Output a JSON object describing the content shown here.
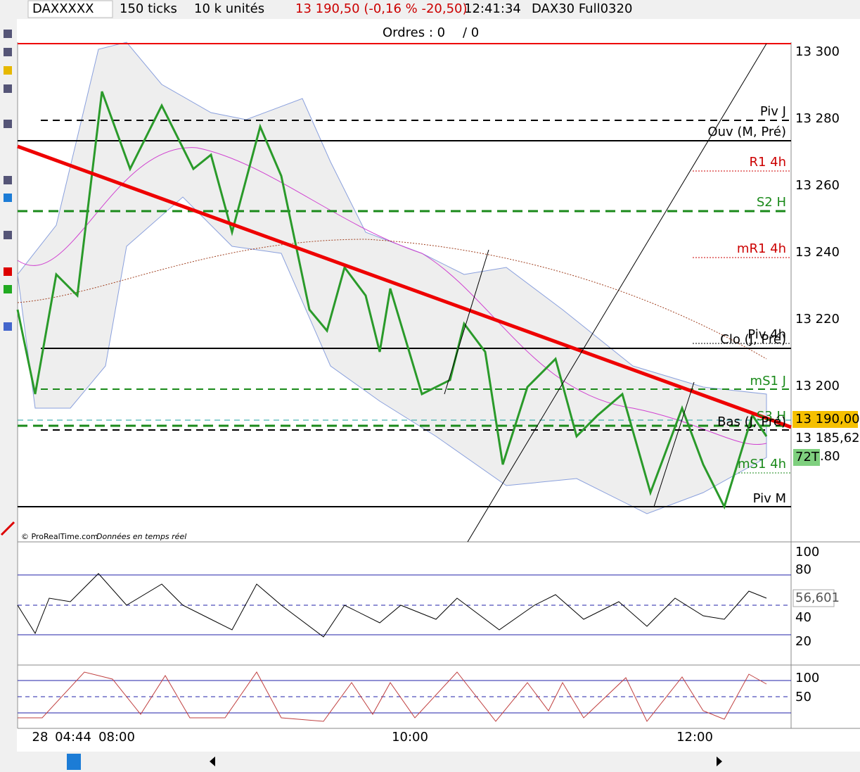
{
  "toolbar": {
    "symbol": "DAXXXXX",
    "ticks": "150 ticks",
    "units": "10 k unités",
    "quote": "13 190,50 (-0,16 % -20,50)",
    "time": "12:41:34",
    "name": "DAX30 Full0320"
  },
  "orders": {
    "label": "Ordres : 0",
    "total": "/ 0"
  },
  "price_axis": [
    "13 300",
    "13 280",
    "13 260",
    "13 240",
    "13 220",
    "13 200"
  ],
  "current": {
    "last": "13 190,00",
    "average": "13 185,62",
    "count": "72T",
    "suffix": ".80"
  },
  "levels": [
    "Piv J",
    "Ouv (M, Pré)",
    "R1 4h",
    "S2 H",
    "mR1 4h",
    "Piv 4h",
    "Clo (J, Pré)",
    "mS1 J",
    "S3 H",
    "Bas (J, Pré)",
    "mS1 4h",
    "Piv M"
  ],
  "footer_note": {
    "copyright": "© ProRealTime.com",
    "feed": "Données en temps réel"
  },
  "rsi_axis": [
    "100",
    "80",
    "40",
    "20"
  ],
  "rsi_value": "56,601",
  "stoch_axis": [
    "100",
    "50"
  ],
  "time_axis": [
    "28",
    "04:44",
    "08:00",
    "10:00",
    "12:00"
  ]
}
